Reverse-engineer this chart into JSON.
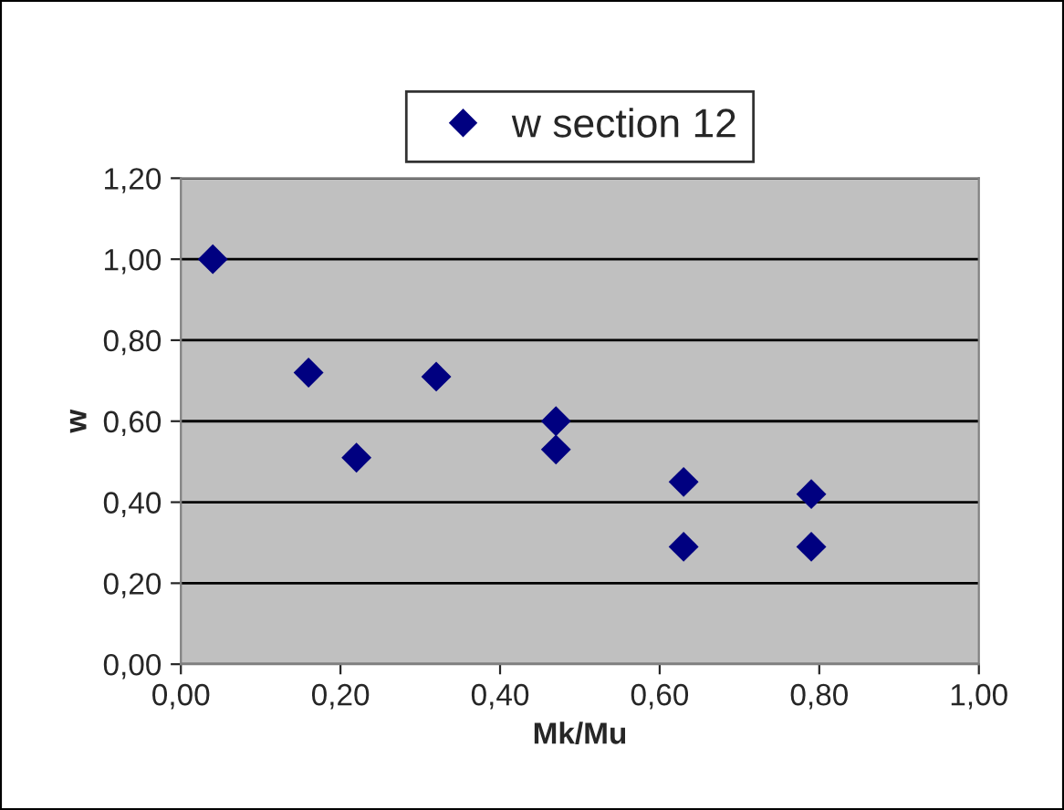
{
  "chart_data": {
    "type": "scatter",
    "xlabel": "Mk/Mu",
    "ylabel": "w",
    "series": [
      {
        "name": "w section 12",
        "color": "#000080",
        "x": [
          0.04,
          0.16,
          0.22,
          0.32,
          0.47,
          0.47,
          0.63,
          0.63,
          0.79,
          0.79
        ],
        "values": [
          1.0,
          0.72,
          0.51,
          0.71,
          0.6,
          0.53,
          0.45,
          0.29,
          0.42,
          0.29
        ]
      }
    ],
    "xlim": [
      0,
      1
    ],
    "xticks": [
      {
        "value": 0,
        "label": "0,00"
      },
      {
        "value": 0.2,
        "label": "0,20"
      },
      {
        "value": 0.4,
        "label": "0,40"
      },
      {
        "value": 0.6,
        "label": "0,60"
      },
      {
        "value": 0.8,
        "label": "0,80"
      },
      {
        "value": 1,
        "label": "1,00"
      }
    ],
    "ylim": [
      0,
      1.2
    ],
    "yticks": [
      {
        "value": 0,
        "label": "0,00"
      },
      {
        "value": 0.2,
        "label": "0,20"
      },
      {
        "value": 0.4,
        "label": "0,40"
      },
      {
        "value": 0.6,
        "label": "0,60"
      },
      {
        "value": 0.8,
        "label": "0,80"
      },
      {
        "value": 1,
        "label": "1,00"
      },
      {
        "value": 1.2,
        "label": "1,20"
      }
    ],
    "grid": "y",
    "legend": "top",
    "marker": "diamond"
  }
}
